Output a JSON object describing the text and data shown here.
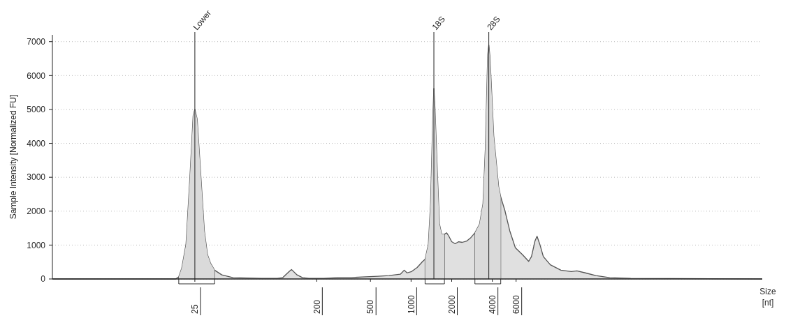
{
  "chart_data": {
    "type": "area",
    "xlabel": "Size [nt]",
    "ylabel": "Sample Intensity [Normalized FU]",
    "log": "x",
    "grid": "y",
    "xlim": [
      2.2,
      400000
    ],
    "ylim": [
      0,
      7200
    ],
    "xticks": [
      25,
      200,
      500,
      1000,
      2000,
      4000,
      6000
    ],
    "yticks": [
      0,
      1000,
      2000,
      3000,
      4000,
      5000,
      6000,
      7000
    ],
    "series": [
      {
        "color": "#e0e0e0",
        "x": [
          2.2,
          18,
          19,
          20,
          21.5,
          23,
          24.3,
          25,
          26,
          27.5,
          29.4,
          31,
          32.7,
          35,
          39.6,
          48,
          78,
          102,
          112,
          125,
          130,
          143,
          157,
          175,
          225,
          286,
          362,
          433,
          567,
          687,
          832,
          890,
          934,
          1010,
          1110,
          1220,
          1270,
          1343,
          1395,
          1449,
          1476,
          1504,
          1563,
          1623,
          1686,
          1767,
          1836,
          1906,
          2000,
          2122,
          2252,
          2390,
          2588,
          2773,
          2972,
          3216,
          3413,
          3550,
          3698,
          3767,
          3846,
          4096,
          4454,
          4617,
          4955,
          5387,
          5925,
          6683,
          7437,
          7800,
          8280,
          8580,
          9000,
          9550,
          10760,
          12880,
          15390,
          16930,
          19540,
          23370,
          29650,
          42380,
          400000
        ],
        "values": [
          0,
          0,
          60,
          320,
          1020,
          3020,
          4820,
          5000,
          4720,
          3220,
          1420,
          720,
          460,
          260,
          120,
          40,
          20,
          20,
          40,
          220,
          280,
          120,
          40,
          20,
          20,
          40,
          40,
          60,
          80,
          100,
          140,
          260,
          180,
          220,
          340,
          520,
          580,
          1020,
          2220,
          4720,
          5620,
          5020,
          3220,
          1620,
          1320,
          1320,
          1360,
          1260,
          1100,
          1040,
          1100,
          1080,
          1120,
          1220,
          1360,
          1620,
          2220,
          3820,
          6620,
          6900,
          6520,
          4220,
          2720,
          2420,
          2020,
          1420,
          920,
          720,
          520,
          660,
          1120,
          1260,
          1020,
          660,
          420,
          260,
          220,
          240,
          180,
          100,
          40,
          20,
          0
        ]
      }
    ],
    "ref_lines": [
      {
        "axis": "x",
        "value": 25,
        "label": "Lower"
      },
      {
        "axis": "x",
        "value": 1476,
        "label": "18S"
      },
      {
        "axis": "x",
        "value": 3767,
        "label": "28S"
      }
    ],
    "bands": [
      {
        "axis": "x",
        "from": 19,
        "to": 35
      },
      {
        "axis": "x",
        "from": 1270,
        "to": 1767
      },
      {
        "axis": "x",
        "from": 2972,
        "to": 4617
      }
    ]
  }
}
